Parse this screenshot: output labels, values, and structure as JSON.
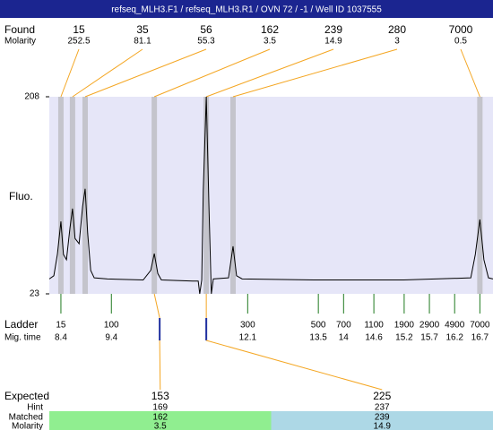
{
  "chart_data": {
    "type": "line",
    "title": "refseq_MLH3.F1 / refseq_MLH3.R1 / OVN 72 / -1 / Well ID 1037555",
    "ylabel": "Fluo.",
    "ylim": [
      23,
      208
    ],
    "yticks": [
      23,
      208
    ],
    "xlim": [
      8.17,
      16.96
    ],
    "x": [
      8.17,
      8.26,
      8.33,
      8.4,
      8.45,
      8.51,
      8.58,
      8.63,
      8.68,
      8.76,
      8.83,
      8.88,
      8.93,
      8.99,
      9.06,
      9.32,
      10.03,
      10.18,
      10.25,
      10.32,
      10.39,
      11.01,
      11.12,
      11.15,
      11.19,
      11.22,
      11.28,
      11.33,
      11.37,
      11.38,
      11.42,
      11.72,
      11.81,
      11.88,
      11.99,
      13.41,
      15.19,
      16.52,
      16.61,
      16.7,
      16.78,
      16.87,
      16.96
    ],
    "series": [
      {
        "color": "#000000",
        "values": [
          37,
          40,
          60,
          91,
          60,
          55,
          85,
          103,
          75,
          70,
          105,
          121.6,
          80,
          45,
          38,
          37,
          36,
          45,
          60.8,
          42,
          36,
          35,
          35,
          23,
          36,
          120,
          208,
          110,
          40,
          23,
          37,
          38,
          67.6,
          40,
          37,
          36,
          36,
          38,
          60,
          92.8,
          55,
          38,
          37
        ]
      }
    ],
    "plot_color": "#e6e6f8",
    "band_color": "#c4c4cc",
    "link_color": "#f4a622",
    "found_label": "Found",
    "found_molarity_label": "Molarity",
    "peaks": [
      {
        "size": 15,
        "molarity": 252.5,
        "time": 8.4
      },
      {
        "size": 35,
        "molarity": 81.1,
        "time": 8.63
      },
      {
        "size": 56,
        "molarity": 55.3,
        "time": 8.88
      },
      {
        "size": 162,
        "molarity": 3.5,
        "time": 10.25
      },
      {
        "size": 239,
        "molarity": 14.9,
        "time": 11.28
      },
      {
        "size": 280,
        "molarity": 3,
        "time": 11.81
      },
      {
        "size": 7000,
        "molarity": 0.5,
        "time": 16.7
      }
    ],
    "ladder_label": "Ladder",
    "mig_time_label": "Mig. time",
    "ladder_color": "#1f7a1f",
    "ladder": [
      {
        "size": 15,
        "time": 8.4
      },
      {
        "size": 100,
        "time": 9.4
      },
      {
        "size": 300,
        "time": 12.1
      },
      {
        "size": 500,
        "time": 13.5
      },
      {
        "size": 700,
        "time": 14
      },
      {
        "size": 1100,
        "time": 14.6
      },
      {
        "size": 1900,
        "time": 15.2
      },
      {
        "size": 2900,
        "time": 15.7
      },
      {
        "size": 4900,
        "time": 16.2
      },
      {
        "size": 7000,
        "time": 16.7
      }
    ],
    "expected_label": "Expected",
    "hint_label": "Hint",
    "matched_label": "Matched",
    "expected_molarity_label": "Molarity",
    "expected": [
      {
        "expected": 153,
        "hint": 169,
        "matched": 162,
        "molarity": 3.5,
        "color": "#90ee90"
      },
      {
        "expected": 225,
        "hint": 237,
        "matched": 239,
        "molarity": 14.9,
        "color": "#add8e6"
      }
    ]
  }
}
